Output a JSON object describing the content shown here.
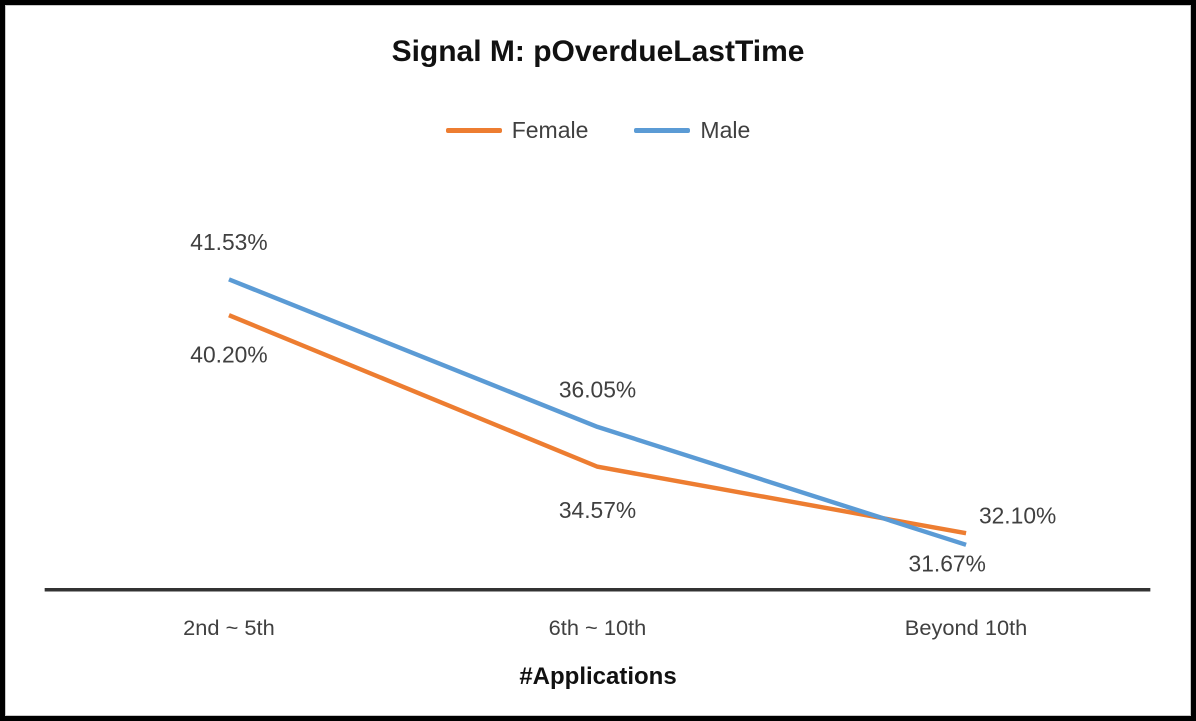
{
  "chart_data": {
    "type": "line",
    "title": "Signal M: pOverdueLastTime",
    "xlabel": "#Applications",
    "ylabel": "",
    "categories": [
      "2nd ~ 5th",
      "6th ~ 10th",
      "Beyond 10th"
    ],
    "series": [
      {
        "name": "Female",
        "color": "#ED7D31",
        "values": [
          40.2,
          34.57,
          32.1
        ],
        "data_labels": [
          "40.20%",
          "34.57%",
          "32.10%"
        ]
      },
      {
        "name": "Male",
        "color": "#5B9BD5",
        "values": [
          41.53,
          36.05,
          31.67
        ],
        "data_labels": [
          "41.53%",
          "36.05%",
          "31.67%"
        ]
      }
    ],
    "ylim": [
      30,
      44
    ],
    "grid": false,
    "legend_position": "top-center",
    "label_offsets": {
      "Female": [
        [
          0,
          40
        ],
        [
          0,
          44
        ],
        [
          52,
          -18
        ]
      ],
      "Male": [
        [
          0,
          -38
        ],
        [
          0,
          -38
        ],
        [
          -19,
          19
        ]
      ]
    },
    "axis_color": "#333333",
    "text_color": "#404040"
  }
}
